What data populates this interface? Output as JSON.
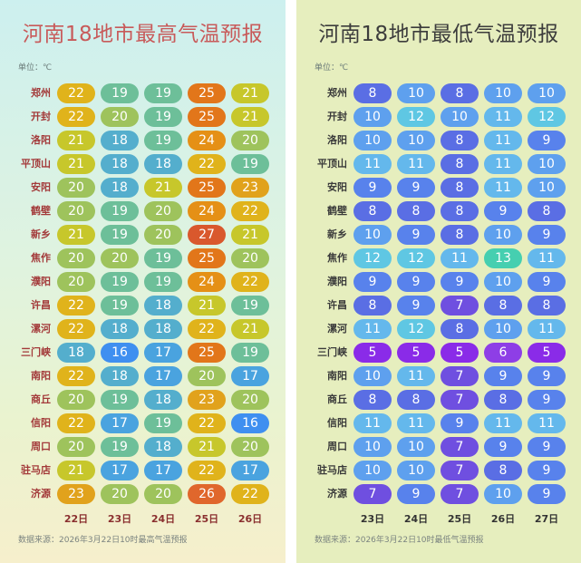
{
  "colors": {
    "t5": "#8a2be8",
    "t6": "#8e3ee6",
    "t7": "#6f4fe0",
    "t8": "#5a6ee4",
    "t9": "#5882ec",
    "t10": "#5ea0ee",
    "t11": "#64b8ec",
    "t12": "#5fc7e3",
    "t13": "#46cfb0",
    "t16": "#3f8ff0",
    "t17": "#4aa3df",
    "t18": "#54aecd",
    "t19": "#6dbf99",
    "t20": "#9ec35c",
    "t21": "#c7c72b",
    "t22": "#e0b31b",
    "t23": "#e1a21c",
    "t24": "#e59016",
    "t25": "#e2761a",
    "t26": "#e0672c",
    "t27": "#d9582d"
  },
  "chart_data": [
    {
      "type": "table",
      "title": "河南18地市最高气温预报",
      "unit_label": "单位：℃",
      "source": "数据来源：2026年3月22日10时最高气温预报",
      "dates": [
        "22日",
        "23日",
        "24日",
        "25日",
        "26日"
      ],
      "cities": [
        "郑州",
        "开封",
        "洛阳",
        "平顶山",
        "安阳",
        "鹤壁",
        "新乡",
        "焦作",
        "濮阳",
        "许昌",
        "漯河",
        "三门峡",
        "南阳",
        "商丘",
        "信阳",
        "周口",
        "驻马店",
        "济源"
      ],
      "values": [
        [
          22,
          19,
          19,
          25,
          21
        ],
        [
          22,
          20,
          19,
          25,
          21
        ],
        [
          21,
          18,
          19,
          24,
          20
        ],
        [
          21,
          18,
          18,
          22,
          19
        ],
        [
          20,
          18,
          21,
          25,
          23
        ],
        [
          20,
          19,
          20,
          24,
          22
        ],
        [
          21,
          19,
          20,
          27,
          21
        ],
        [
          20,
          20,
          19,
          25,
          20
        ],
        [
          20,
          19,
          19,
          24,
          22
        ],
        [
          22,
          19,
          18,
          21,
          19
        ],
        [
          22,
          18,
          18,
          22,
          21
        ],
        [
          18,
          16,
          17,
          25,
          19
        ],
        [
          22,
          18,
          17,
          20,
          17
        ],
        [
          20,
          19,
          18,
          23,
          20
        ],
        [
          22,
          17,
          19,
          22,
          16
        ],
        [
          20,
          19,
          18,
          21,
          20
        ],
        [
          21,
          17,
          17,
          22,
          17
        ],
        [
          23,
          20,
          20,
          26,
          22
        ]
      ]
    },
    {
      "type": "table",
      "title": "河南18地市最低气温预报",
      "unit_label": "单位：℃",
      "source": "数据来源：2026年3月22日10时最低气温预报",
      "dates": [
        "23日",
        "24日",
        "25日",
        "26日",
        "27日"
      ],
      "cities": [
        "郑州",
        "开封",
        "洛阳",
        "平顶山",
        "安阳",
        "鹤壁",
        "新乡",
        "焦作",
        "濮阳",
        "许昌",
        "漯河",
        "三门峡",
        "南阳",
        "商丘",
        "信阳",
        "周口",
        "驻马店",
        "济源"
      ],
      "values": [
        [
          8,
          10,
          8,
          10,
          10
        ],
        [
          10,
          12,
          10,
          11,
          12
        ],
        [
          10,
          10,
          8,
          11,
          9
        ],
        [
          11,
          11,
          8,
          11,
          10
        ],
        [
          9,
          9,
          8,
          11,
          10
        ],
        [
          8,
          8,
          8,
          9,
          8
        ],
        [
          10,
          9,
          8,
          10,
          9
        ],
        [
          12,
          12,
          11,
          13,
          11
        ],
        [
          9,
          9,
          9,
          10,
          9
        ],
        [
          8,
          9,
          7,
          8,
          8
        ],
        [
          11,
          12,
          8,
          10,
          11
        ],
        [
          5,
          5,
          5,
          6,
          5
        ],
        [
          10,
          11,
          7,
          9,
          9
        ],
        [
          8,
          8,
          7,
          8,
          9
        ],
        [
          11,
          11,
          9,
          11,
          11
        ],
        [
          10,
          10,
          7,
          9,
          9
        ],
        [
          10,
          10,
          7,
          8,
          9
        ],
        [
          7,
          9,
          7,
          10,
          9
        ]
      ]
    }
  ]
}
